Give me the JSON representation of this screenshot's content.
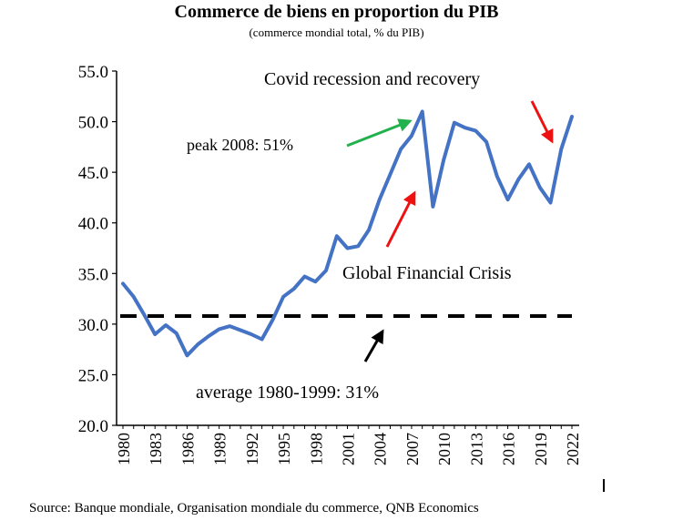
{
  "chart_data": {
    "type": "line",
    "title": "Commerce de biens en proportion du PIB",
    "subtitle": "(commerce mondial total, % du PIB)",
    "source": "Source: Banque mondiale, Organisation mondiale du commerce, QNB Economics",
    "xlabel": "",
    "ylabel": "",
    "ylim": [
      20,
      55
    ],
    "yticks": [
      "20.0",
      "25.0",
      "30.0",
      "35.0",
      "40.0",
      "45.0",
      "50.0",
      "55.0"
    ],
    "xlim": [
      1980,
      2022
    ],
    "xticks": [
      "1980",
      "1983",
      "1986",
      "1989",
      "1992",
      "1995",
      "1998",
      "2001",
      "2004",
      "2007",
      "2010",
      "2013",
      "2016",
      "2019",
      "2022"
    ],
    "grid": false,
    "legend": "none",
    "series": [
      {
        "color": "#4472C4",
        "x": [
          1980,
          1981,
          1982,
          1983,
          1984,
          1985,
          1986,
          1987,
          1988,
          1989,
          1990,
          1991,
          1992,
          1993,
          1994,
          1995,
          1996,
          1997,
          1998,
          1999,
          2000,
          2001,
          2002,
          2003,
          2004,
          2005,
          2006,
          2007,
          2008,
          2009,
          2010,
          2011,
          2012,
          2013,
          2014,
          2015,
          2016,
          2017,
          2018,
          2019,
          2020,
          2021,
          2022
        ],
        "y": [
          34.0,
          32.7,
          30.9,
          29.0,
          29.9,
          29.1,
          26.9,
          28.0,
          28.8,
          29.5,
          29.8,
          29.4,
          29.0,
          28.5,
          30.4,
          32.7,
          33.5,
          34.7,
          34.2,
          35.3,
          38.7,
          37.5,
          37.7,
          39.3,
          42.3,
          44.8,
          47.3,
          48.6,
          51.0,
          41.6,
          46.2,
          49.9,
          49.4,
          49.1,
          48.0,
          44.6,
          42.3,
          44.3,
          45.8,
          43.5,
          42.0,
          47.3,
          50.5
        ]
      }
    ],
    "reference_line": {
      "label": "average 1980-1999:  31%",
      "value": 30.8,
      "color": "#000000"
    },
    "annotations": [
      {
        "text": "peak 2008:  51%",
        "arrow_color": "#22b14c"
      },
      {
        "text": "Global  Financial  Crisis",
        "arrow_color": "#ee1111"
      },
      {
        "text": "Covid recession and recovery",
        "arrow_color": "#ee1111"
      },
      {
        "text": "average 1980-1999:  31%",
        "arrow_color": "#000000"
      }
    ]
  }
}
